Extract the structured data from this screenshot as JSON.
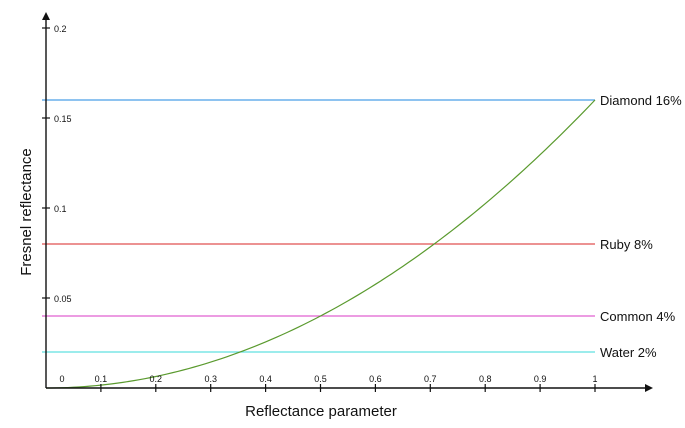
{
  "chart_data": {
    "type": "line",
    "xlabel": "Reflectance parameter",
    "ylabel": "Fresnel reflectance",
    "xlim": [
      0,
      1
    ],
    "ylim": [
      0,
      0.2
    ],
    "x_ticks": [
      "0",
      "0.1",
      "0.2",
      "0.3",
      "0.4",
      "0.5",
      "0.6",
      "0.7",
      "0.8",
      "0.9",
      "1"
    ],
    "y_ticks": [
      "0.05",
      "0.1",
      "0.15",
      "0.2"
    ],
    "grid": false,
    "series": [
      {
        "color": "#5a9a2e",
        "x": [
          0,
          0.1,
          0.2,
          0.3,
          0.4,
          0.5,
          0.6,
          0.7,
          0.8,
          0.9,
          1
        ],
        "y": [
          0,
          0.0016,
          0.0064,
          0.0144,
          0.0256,
          0.04,
          0.0576,
          0.0784,
          0.1024,
          0.1296,
          0.16
        ]
      }
    ],
    "reference_lines": [
      {
        "label": "Diamond 16%",
        "value": 0.16,
        "color": "#4a9fe8"
      },
      {
        "label": "Ruby 8%",
        "value": 0.08,
        "color": "#e05050"
      },
      {
        "label": "Common 4%",
        "value": 0.04,
        "color": "#e060d0"
      },
      {
        "label": "Water 2%",
        "value": 0.02,
        "color": "#60e0e0"
      }
    ]
  }
}
